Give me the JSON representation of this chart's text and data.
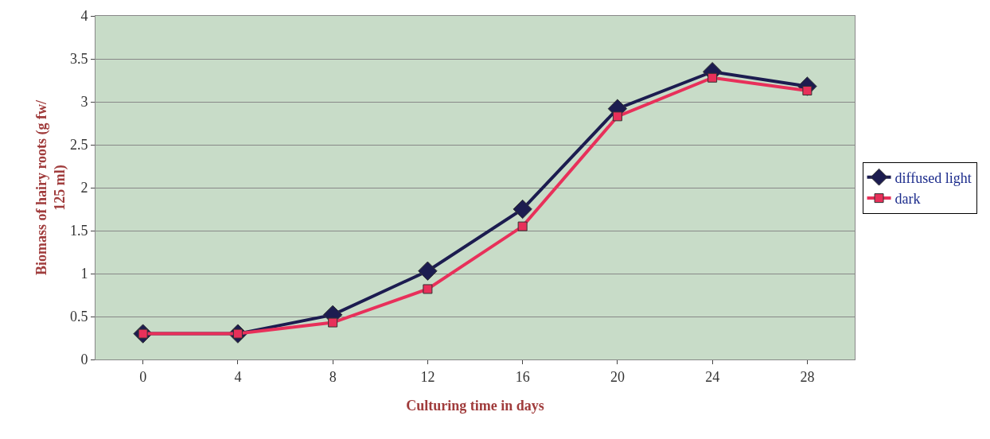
{
  "chart_data": {
    "type": "line",
    "xlabel": "Culturing time in days",
    "ylabel": "Biomass of hairy roots (g fw/ 125 ml)",
    "categories": [
      "0",
      "4",
      "8",
      "12",
      "16",
      "20",
      "24",
      "28"
    ],
    "series": [
      {
        "name": "diffused light",
        "color": "#1c1c50",
        "marker": "diamond",
        "values": [
          0.3,
          0.3,
          0.52,
          1.03,
          1.75,
          2.92,
          3.35,
          3.18
        ]
      },
      {
        "name": "dark",
        "color": "#e8305a",
        "marker": "square",
        "values": [
          0.3,
          0.3,
          0.43,
          0.82,
          1.55,
          2.83,
          3.28,
          3.13
        ]
      }
    ],
    "ylim": [
      0,
      4
    ],
    "yticks": [
      0,
      0.5,
      1,
      1.5,
      2,
      2.5,
      3,
      3.5,
      4
    ],
    "grid": "y",
    "legend": "right"
  }
}
